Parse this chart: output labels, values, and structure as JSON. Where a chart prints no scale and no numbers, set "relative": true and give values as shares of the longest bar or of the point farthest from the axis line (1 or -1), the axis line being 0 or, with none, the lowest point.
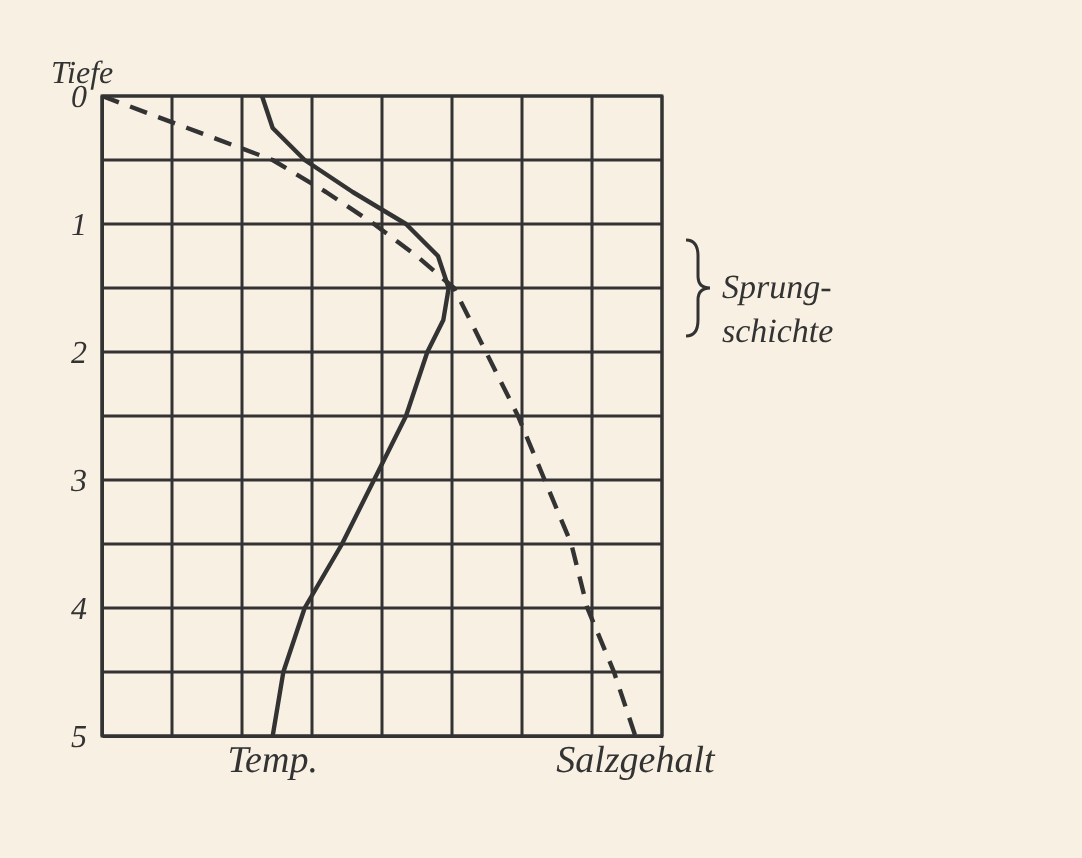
{
  "chart_data": {
    "type": "line",
    "orientation": "horizontal",
    "relative": true,
    "ylabel": "Tiefe",
    "ylim": [
      5,
      0
    ],
    "yticks": [
      0,
      {
        "value": 0.5,
        "label": null
      },
      1,
      {
        "value": 1.5,
        "label": null
      },
      2,
      {
        "value": 2.5,
        "label": null
      },
      3,
      {
        "value": 3.5,
        "label": null
      },
      4,
      {
        "value": 4.5,
        "label": null
      },
      5
    ],
    "grid": true,
    "series": [
      {
        "name": "Temp.",
        "color": "#333333",
        "line_style": "solid",
        "x": [
          0,
          0.25,
          0.5,
          0.75,
          1.0,
          1.25,
          1.5,
          1.75,
          2.0,
          2.5,
          3.0,
          3.5,
          4.0,
          4.5,
          5.0
        ],
        "values": [
          0.3,
          0.32,
          0.38,
          0.47,
          0.57,
          0.63,
          0.65,
          0.64,
          0.61,
          0.57,
          0.51,
          0.45,
          0.38,
          0.34,
          0.32
        ]
      },
      {
        "name": "Salzgehalt",
        "color": "#333333",
        "line_style": "dashed",
        "x": [
          0,
          0.25,
          0.5,
          0.75,
          1.0,
          1.25,
          1.5,
          2.0,
          2.5,
          3.0,
          3.5,
          4.0,
          4.5,
          5.0
        ],
        "values": [
          0,
          0.16,
          0.32,
          0.42,
          0.51,
          0.59,
          0.66,
          0.72,
          0.78,
          0.83,
          0.88,
          0.91,
          0.96,
          1
        ]
      }
    ],
    "annotations": [
      "Sprung-\nschichte"
    ]
  }
}
